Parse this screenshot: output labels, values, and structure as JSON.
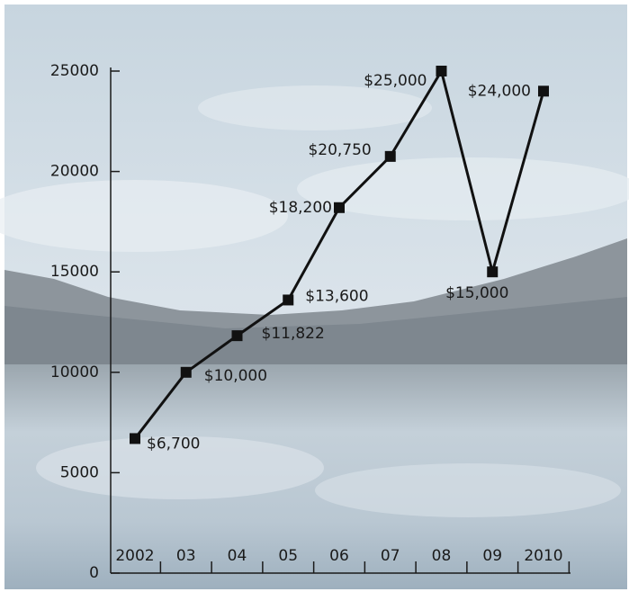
{
  "chart_data": {
    "type": "line",
    "categories": [
      "2002",
      "03",
      "04",
      "05",
      "06",
      "07",
      "08",
      "09",
      "2010"
    ],
    "values": [
      6700,
      10000,
      11822,
      13600,
      18200,
      20750,
      25000,
      15000,
      24000
    ],
    "value_labels": [
      "$6,700",
      "$10,000",
      "$11,822",
      "$13,600",
      "$18,200",
      "$20,750",
      "$25,000",
      "$15,000",
      "$24,000"
    ],
    "color": "#111111",
    "ylim": [
      0,
      25000
    ],
    "yticks": [
      0,
      5000,
      10000,
      15000,
      20000,
      25000
    ]
  }
}
